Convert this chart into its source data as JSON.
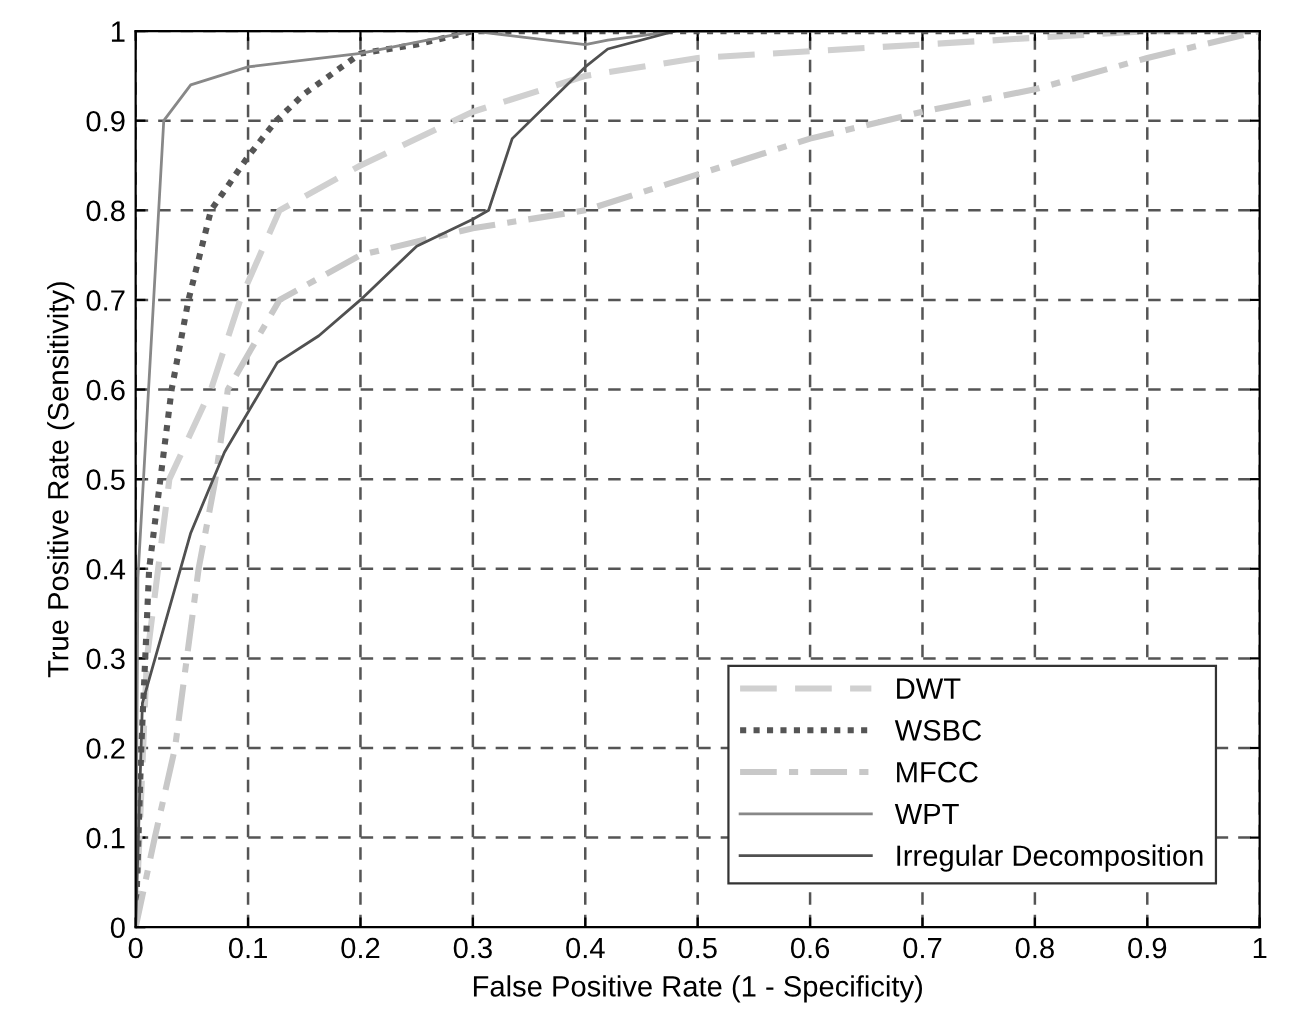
{
  "chart_data": {
    "type": "line",
    "xlabel": "False Positive Rate (1 - Specificity)",
    "ylabel": "True Positive Rate (Sensitivity)",
    "xlim": [
      0,
      1
    ],
    "ylim": [
      0,
      1
    ],
    "xticks": [
      0,
      0.1,
      0.2,
      0.3,
      0.4,
      0.5,
      0.6,
      0.7,
      0.8,
      0.9,
      1
    ],
    "yticks": [
      0,
      0.1,
      0.2,
      0.3,
      0.4,
      0.5,
      0.6,
      0.7,
      0.8,
      0.9,
      1
    ],
    "grid": true,
    "legend": "bottom right",
    "marker": "none",
    "series": [
      {
        "name": "DWT",
        "color": "#d0d0d0",
        "line_style": "dashed",
        "x": [
          0,
          0.01,
          0.03,
          0.067,
          0.093,
          0.128,
          0.2,
          0.3,
          0.4,
          0.5,
          0.7,
          0.9,
          1
        ],
        "values": [
          0,
          0.3,
          0.5,
          0.6,
          0.7,
          0.8,
          0.85,
          0.91,
          0.95,
          0.97,
          0.985,
          1,
          1
        ]
      },
      {
        "name": "WSBC",
        "color": "#555555",
        "line_style": "dotted",
        "x": [
          0,
          0.005,
          0.012,
          0.022,
          0.032,
          0.047,
          0.067,
          0.1,
          0.125,
          0.15,
          0.2,
          0.25,
          0.3,
          1
        ],
        "values": [
          0,
          0.2,
          0.4,
          0.5,
          0.6,
          0.7,
          0.8,
          0.86,
          0.9,
          0.93,
          0.975,
          0.985,
          1,
          1
        ]
      },
      {
        "name": "MFCC",
        "color": "#c8c8c8",
        "line_style": "dashdot",
        "x": [
          0,
          0.017,
          0.035,
          0.056,
          0.071,
          0.082,
          0.128,
          0.2,
          0.3,
          0.4,
          0.5,
          0.6,
          0.7,
          0.8,
          0.9,
          1
        ],
        "values": [
          0,
          0.1,
          0.2,
          0.4,
          0.5,
          0.6,
          0.7,
          0.75,
          0.78,
          0.8,
          0.84,
          0.88,
          0.91,
          0.935,
          0.97,
          1
        ]
      },
      {
        "name": "WPT",
        "color": "#888888",
        "line_style": "solid",
        "x": [
          0,
          0.002,
          0.025,
          0.049,
          0.1,
          0.2,
          0.3,
          0.4,
          0.42,
          0.48,
          1
        ],
        "values": [
          0,
          0.39,
          0.9,
          0.94,
          0.96,
          0.975,
          1,
          0.985,
          0.99,
          1,
          1
        ]
      },
      {
        "name": "Irregular Decomposition",
        "color": "#505050",
        "line_style": "solid",
        "x": [
          0,
          0.006,
          0.049,
          0.079,
          0.126,
          0.163,
          0.2,
          0.25,
          0.3,
          0.314,
          0.335,
          0.4,
          0.42,
          0.48
        ],
        "values": [
          0,
          0.25,
          0.44,
          0.53,
          0.63,
          0.66,
          0.7,
          0.76,
          0.79,
          0.8,
          0.88,
          0.96,
          0.98,
          1
        ]
      }
    ]
  }
}
